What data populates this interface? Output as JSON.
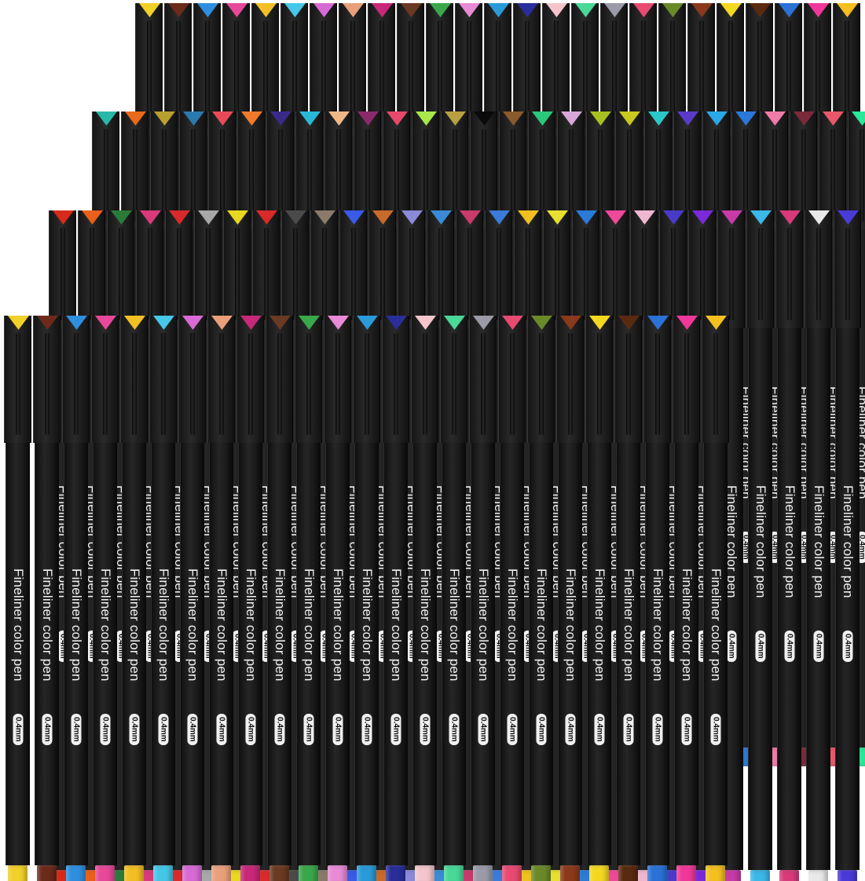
{
  "image": {
    "description_free": true,
    "pen_label": "Fineliner color pen",
    "pen_size": "0.4mm"
  },
  "rows": [
    {
      "colors": [
        "#f2d02a",
        "#6b2a1a",
        "#2e8fe0",
        "#e8489a",
        "#f2c024",
        "#45c7e8",
        "#d86ad6",
        "#e9a07a",
        "#c8287a",
        "#6a3a22",
        "#3aa84a",
        "#e88ad6",
        "#2a9ad8",
        "#2a2e9a",
        "#f4c6cc",
        "#48d898",
        "#9a9aa8",
        "#e84a72",
        "#6a8a2a",
        "#8a3a1a",
        "#f4d820",
        "#5a2a10",
        "#2a72d8",
        "#f0389a",
        "#f4c020"
      ]
    },
    {
      "colors": [
        "#2ab8a8",
        "#e86a1a",
        "#b8a030",
        "#2a7ab0",
        "#e84a5a",
        "#f07a2a",
        "#3a2a8a",
        "#2ab8d8",
        "#f0b888",
        "#8a2a6a",
        "#e8486a",
        "#a8e84a",
        "#b8a040",
        "#0a0a0a",
        "#8a5a2a",
        "#2ac87a",
        "#d8a8d8",
        "#a8c020",
        "#c8c820",
        "#2ac8c8",
        "#5a3ac8",
        "#2aa8e8",
        "#2a78d8",
        "#f07aa8",
        "#7a2a3a",
        "#e8586a",
        "#2ae89a",
        "#1a98d8"
      ]
    },
    {
      "colors": [
        "#d82a1a",
        "#e8601a",
        "#2a7a3a",
        "#d83a7a",
        "#d82a2a",
        "#a8a8a8",
        "#e8d820",
        "#d82a2a",
        "#4a4a4a",
        "#8a7a6a",
        "#3a5ae8",
        "#c86a2a",
        "#8a8ad8",
        "#3a8ad8",
        "#c83a6a",
        "#3a7ad8",
        "#f0c020",
        "#e8e030",
        "#2a7ad8",
        "#f0489a",
        "#f0b8d0",
        "#4a3ac8",
        "#7a2ad8",
        "#c83aa8",
        "#3ab8e8",
        "#d83a7a",
        "#e8e8e8",
        "#4a3ad8"
      ]
    },
    {
      "colors": [
        "#f2d02a",
        "#6b2a1a",
        "#2e8fe0",
        "#e8489a",
        "#f2c024",
        "#45c7e8",
        "#d86ad6",
        "#e9a07a",
        "#c8287a",
        "#6a3a22",
        "#3aa84a",
        "#e88ad6",
        "#2a9ad8",
        "#2a2e9a",
        "#f4c6cc",
        "#48d898",
        "#9a9aa8",
        "#e84a72",
        "#6a8a2a",
        "#8a3a1a",
        "#f4d820",
        "#5a2a10",
        "#2a72d8",
        "#f0389a",
        "#f4c020"
      ]
    }
  ]
}
